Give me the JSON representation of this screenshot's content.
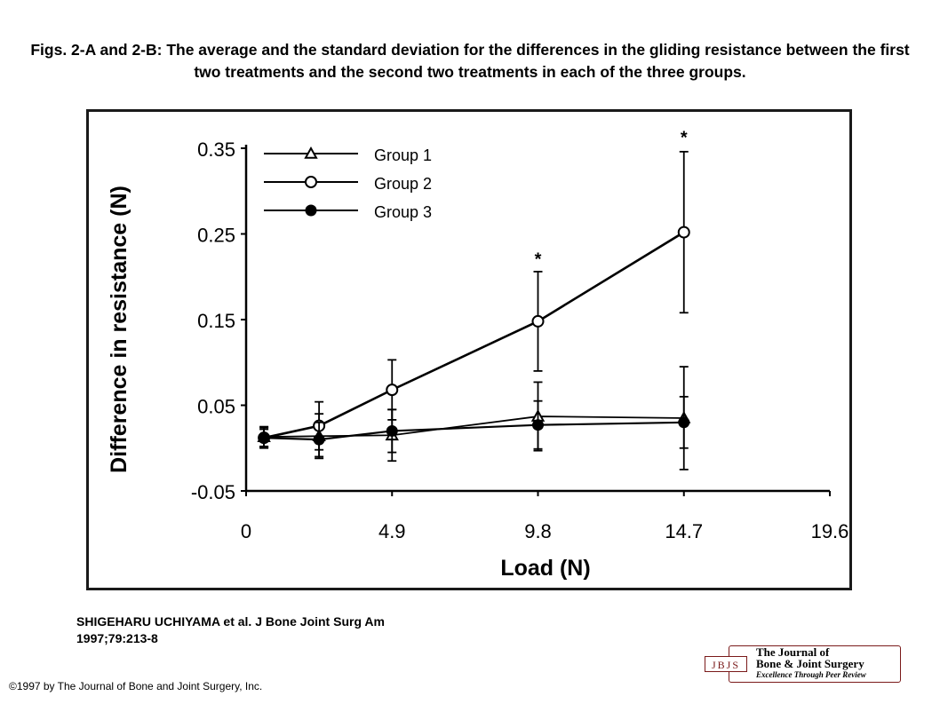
{
  "title": "Figs. 2-A and 2-B: The average and the standard deviation for the differences in the gliding resistance between the first two treatments and the second two treatments in each of the three groups.",
  "citation": {
    "line1": "SHIGEHARU UCHIYAMA et al. J Bone Joint Surg Am",
    "line2": "1997;79:213-8"
  },
  "copyright": "©1997 by The Journal of Bone and Joint Surgery, Inc.",
  "journal_logo": {
    "mark": "JBJS",
    "line1": "The Journal of",
    "line2": "Bone & Joint Surgery",
    "tagline": "Excellence Through Peer Review"
  },
  "chart_data": {
    "type": "line",
    "xlabel": "Load (N)",
    "ylabel": "Difference in resistance (N)",
    "xlim": [
      0,
      19.6
    ],
    "ylim": [
      -0.05,
      0.35
    ],
    "x_ticks": [
      0,
      4.9,
      9.8,
      14.7,
      19.6
    ],
    "x_tick_labels": [
      "0",
      "4.9",
      "9.8",
      "14.7",
      "19.6"
    ],
    "y_ticks": [
      -0.05,
      0.05,
      0.15,
      0.25,
      0.35
    ],
    "y_tick_labels": [
      "-0.05",
      "0.05",
      "0.15",
      "0.25",
      "0.35"
    ],
    "legend_position": "top-left",
    "grid": false,
    "series": [
      {
        "name": "Group 1",
        "marker": "open-triangle",
        "x": [
          0.6,
          2.45,
          4.9,
          9.8,
          14.7
        ],
        "y": [
          0.013,
          0.014,
          0.015,
          0.037,
          0.035
        ],
        "err": [
          0.012,
          0.026,
          0.03,
          0.04,
          0.06
        ]
      },
      {
        "name": "Group 2",
        "marker": "open-circle",
        "x": [
          0.6,
          2.45,
          4.9,
          9.8,
          14.7
        ],
        "y": [
          0.012,
          0.026,
          0.068,
          0.148,
          0.252
        ],
        "err": [
          0.012,
          0.028,
          0.035,
          0.058,
          0.094
        ]
      },
      {
        "name": "Group 3",
        "marker": "filled-circle",
        "x": [
          0.6,
          2.45,
          4.9,
          9.8,
          14.7
        ],
        "y": [
          0.012,
          0.01,
          0.02,
          0.027,
          0.03
        ],
        "err": [
          0.01,
          0.02,
          0.025,
          0.028,
          0.03
        ]
      }
    ],
    "annotations": [
      {
        "text": "*",
        "x": 9.8,
        "y": 0.222
      },
      {
        "text": "*",
        "x": 14.7,
        "y": 0.364
      }
    ]
  }
}
